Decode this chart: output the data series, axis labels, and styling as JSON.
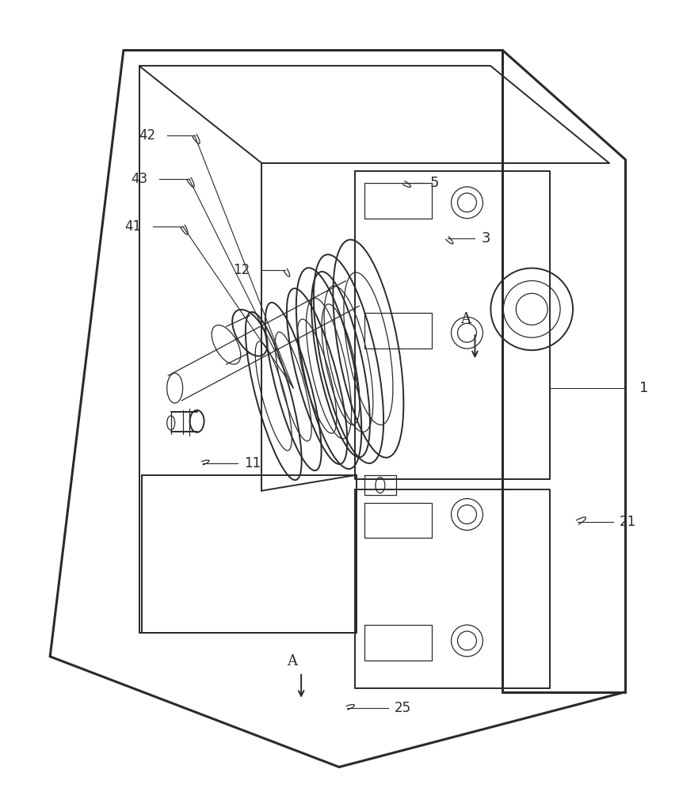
{
  "bg_color": "#ffffff",
  "line_color": "#2a2a2a",
  "lw_thick": 2.2,
  "lw_med": 1.4,
  "lw_thin": 0.9,
  "fig_w": 8.57,
  "fig_h": 10.0,
  "font_size": 12
}
